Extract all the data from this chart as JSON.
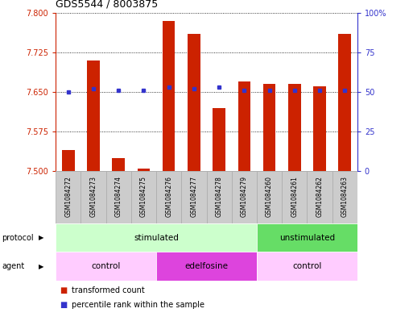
{
  "title": "GDS5544 / 8003875",
  "samples": [
    "GSM1084272",
    "GSM1084273",
    "GSM1084274",
    "GSM1084275",
    "GSM1084276",
    "GSM1084277",
    "GSM1084278",
    "GSM1084279",
    "GSM1084260",
    "GSM1084261",
    "GSM1084262",
    "GSM1084263"
  ],
  "transformed_count": [
    7.54,
    7.71,
    7.525,
    7.505,
    7.785,
    7.76,
    7.62,
    7.67,
    7.665,
    7.665,
    7.66,
    7.76
  ],
  "percentile_rank": [
    50,
    52,
    51,
    51,
    53,
    52,
    53,
    51,
    51,
    51,
    51,
    51
  ],
  "ylim_left": [
    7.5,
    7.8
  ],
  "ylim_right": [
    0,
    100
  ],
  "yticks_left": [
    7.5,
    7.575,
    7.65,
    7.725,
    7.8
  ],
  "yticks_right": [
    0,
    25,
    50,
    75,
    100
  ],
  "bar_color": "#cc2200",
  "dot_color": "#3333cc",
  "bar_width": 0.5,
  "protocol_groups": [
    {
      "label": "stimulated",
      "start": 0,
      "end": 7,
      "color": "#ccffcc"
    },
    {
      "label": "unstimulated",
      "start": 8,
      "end": 11,
      "color": "#66dd66"
    }
  ],
  "agent_groups": [
    {
      "label": "control",
      "start": 0,
      "end": 3,
      "color": "#ffccff"
    },
    {
      "label": "edelfosine",
      "start": 4,
      "end": 7,
      "color": "#dd44dd"
    },
    {
      "label": "control",
      "start": 8,
      "end": 11,
      "color": "#ffccff"
    }
  ],
  "legend_items": [
    {
      "label": "transformed count",
      "color": "#cc2200"
    },
    {
      "label": "percentile rank within the sample",
      "color": "#3333cc"
    }
  ],
  "left_axis_color": "#cc2200",
  "right_axis_color": "#3333cc",
  "label_box_color": "#cccccc",
  "label_box_edge": "#aaaaaa"
}
